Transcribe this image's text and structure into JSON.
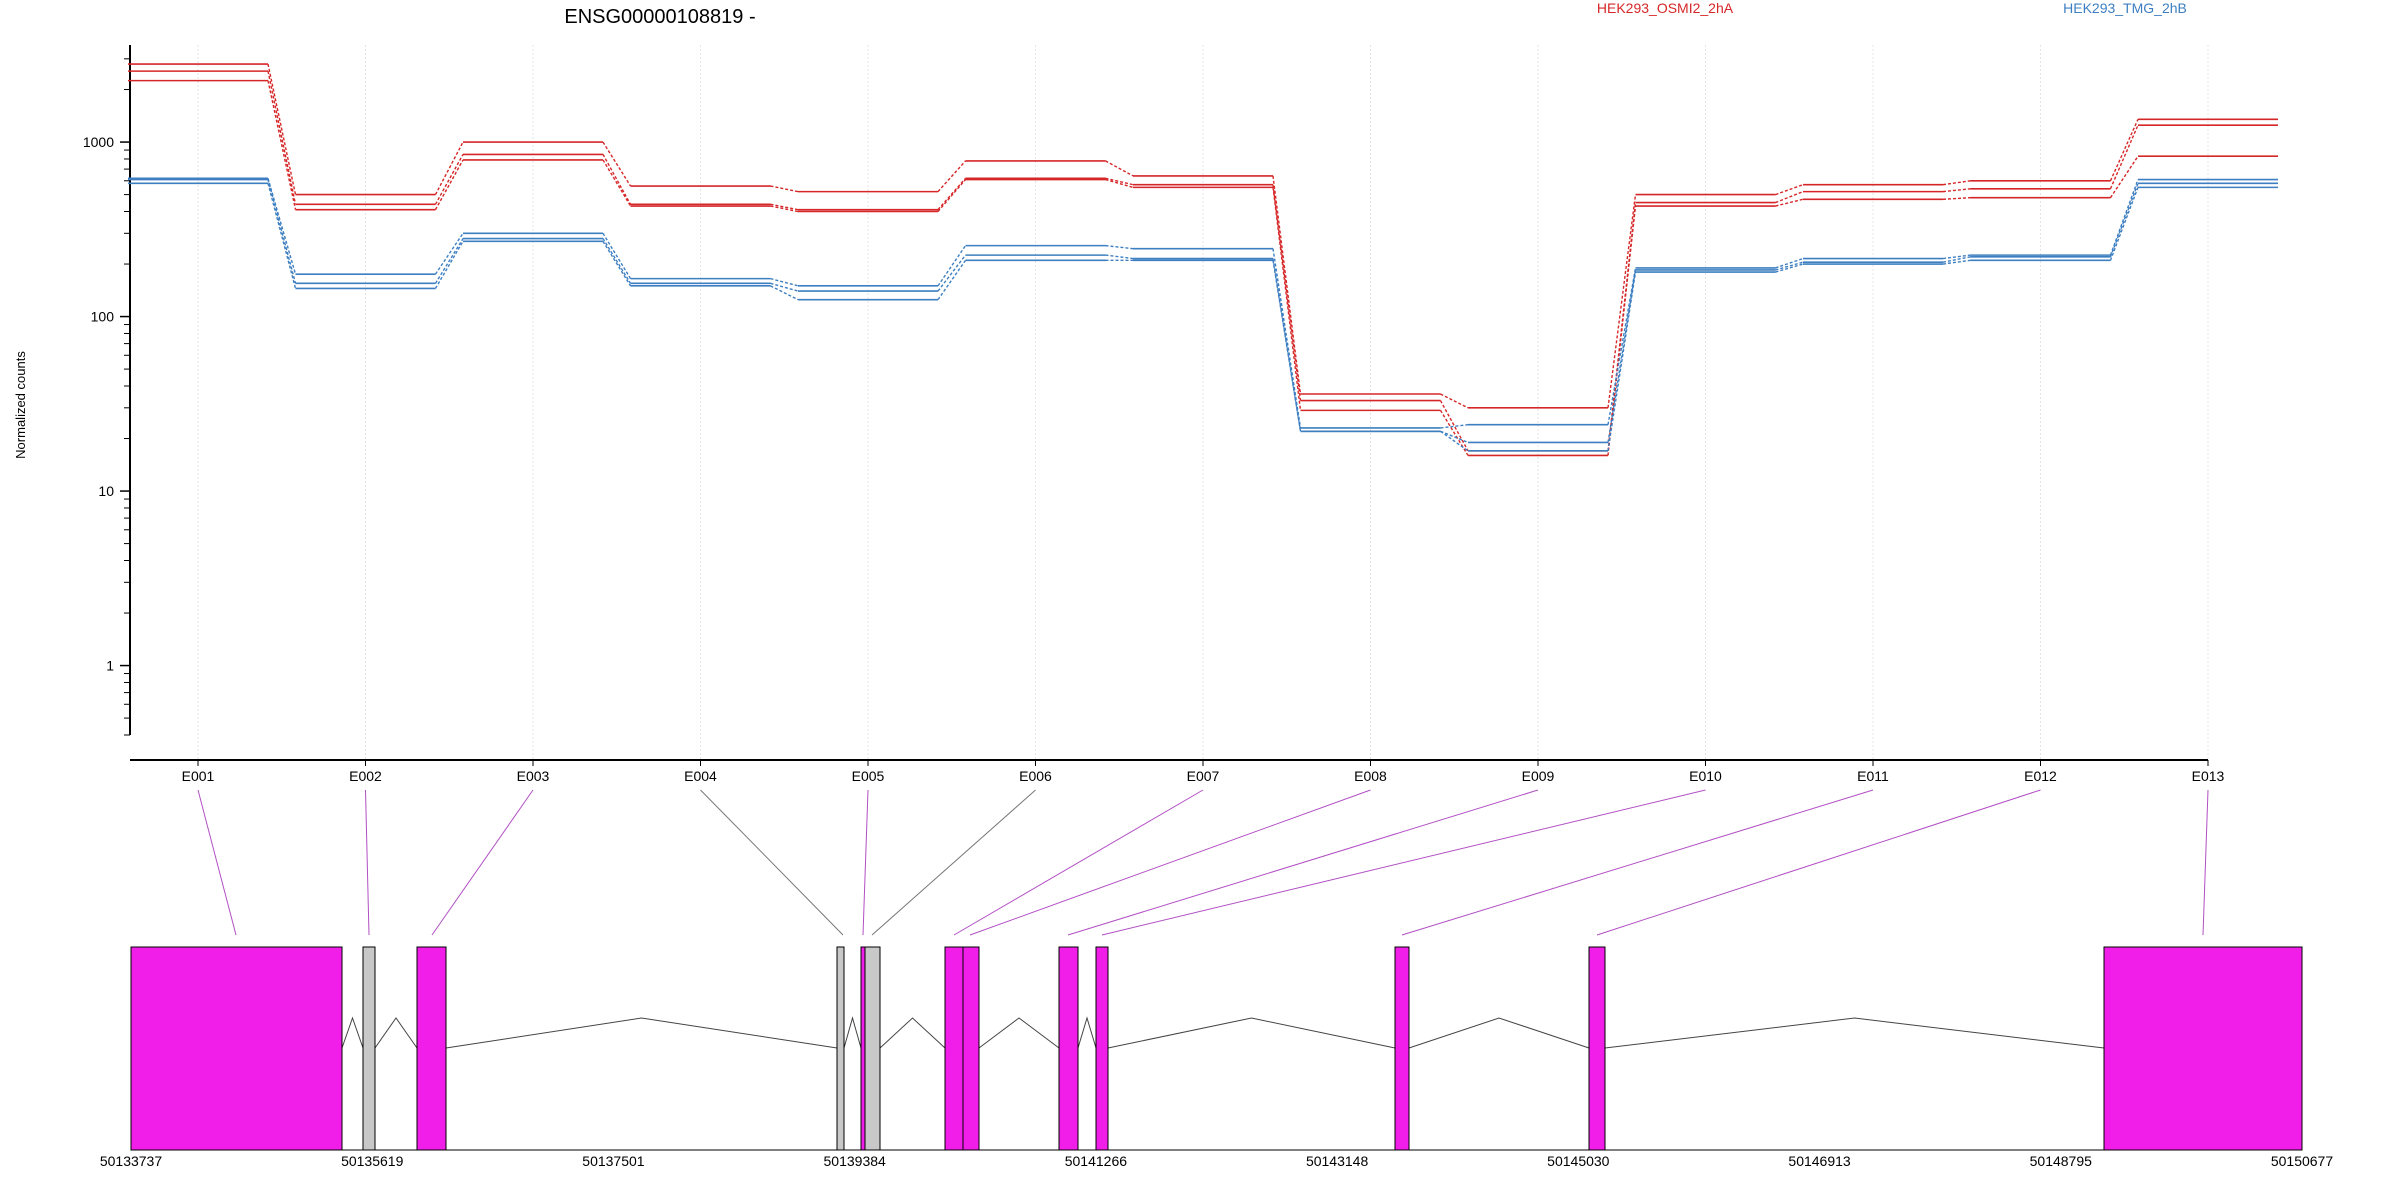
{
  "title": "ENSG00000108819 -",
  "ylabel": "Normalized counts",
  "colors": {
    "red": "#d62728",
    "blue": "#3d7fc1",
    "exon": "#f01ee8",
    "exon_other": "#c8c8c8",
    "connector": "#b24fc4"
  },
  "chart_data": {
    "type": "line",
    "title": "ENSG00000108819 -",
    "xlabel": "",
    "ylabel": "Normalized counts",
    "yscale": "log",
    "ylim": [
      0.4,
      3600
    ],
    "yticks": [
      "1",
      "10",
      "100",
      "1000"
    ],
    "grid": "vertical",
    "legend_position": "top-right",
    "categories": [
      "E001",
      "E002",
      "E003",
      "E004",
      "E005",
      "E006",
      "E007",
      "E008",
      "E009",
      "E010",
      "E011",
      "E012",
      "E013"
    ],
    "series": [
      {
        "name": "HEK293_OSMI2_2hA",
        "color": "#d62728",
        "values": [
          2800,
          500,
          1000,
          560,
          520,
          780,
          640,
          36,
          30,
          500,
          570,
          600,
          1350
        ]
      },
      {
        "color": "#d62728",
        "values": [
          2550,
          440,
          850,
          440,
          410,
          620,
          570,
          33,
          17,
          450,
          520,
          540,
          1250
        ]
      },
      {
        "color": "#d62728",
        "values": [
          2250,
          410,
          790,
          430,
          400,
          610,
          550,
          29,
          16,
          430,
          470,
          480,
          830
        ]
      },
      {
        "name": "HEK293_TMG_2hB",
        "color": "#3d7fc1",
        "values": [
          620,
          175,
          300,
          165,
          150,
          255,
          245,
          23,
          24,
          190,
          215,
          225,
          610
        ]
      },
      {
        "color": "#3d7fc1",
        "values": [
          610,
          155,
          280,
          155,
          140,
          225,
          215,
          22,
          19,
          185,
          205,
          220,
          580
        ]
      },
      {
        "color": "#3d7fc1",
        "values": [
          580,
          145,
          270,
          150,
          125,
          210,
          210,
          22,
          17,
          180,
          200,
          210,
          550
        ]
      }
    ],
    "genomic_axis": {
      "ticks": [
        "50133737",
        "50135619",
        "50137501",
        "50139384",
        "50141266",
        "50143148",
        "50145030",
        "50146913",
        "50148795",
        "50150677"
      ]
    }
  }
}
